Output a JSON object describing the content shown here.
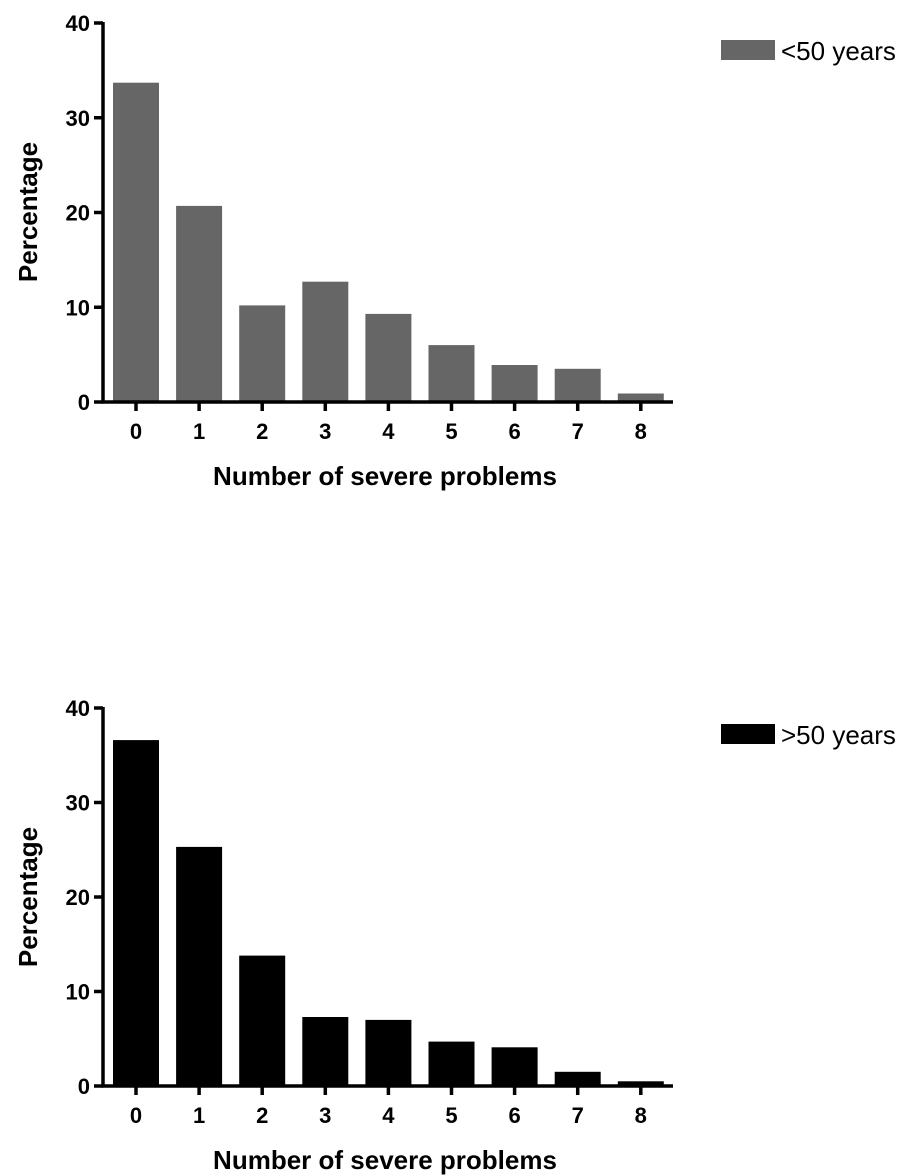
{
  "chart_data": [
    {
      "type": "bar",
      "categories": [
        "0",
        "1",
        "2",
        "3",
        "4",
        "5",
        "6",
        "7",
        "8"
      ],
      "series": [
        {
          "name": "<50 years",
          "values": [
            33.7,
            20.7,
            10.2,
            12.7,
            9.3,
            6.0,
            3.9,
            3.5,
            0.9
          ],
          "color": "#666666"
        }
      ],
      "xlabel": "Number of severe problems",
      "ylabel": "Percentage",
      "ylim": [
        0,
        40
      ],
      "yticks": [
        "0",
        "10",
        "20",
        "30",
        "40"
      ],
      "grid": false,
      "legend_position": "top-right"
    },
    {
      "type": "bar",
      "categories": [
        "0",
        "1",
        "2",
        "3",
        "4",
        "5",
        "6",
        "7",
        "8"
      ],
      "series": [
        {
          "name": ">50 years",
          "values": [
            36.6,
            25.3,
            13.8,
            7.3,
            7.0,
            4.7,
            4.1,
            1.5,
            0.5
          ],
          "color": "#000000"
        }
      ],
      "xlabel": "Number of severe problems",
      "ylabel": "Percentage",
      "ylim": [
        0,
        40
      ],
      "yticks": [
        "0",
        "10",
        "20",
        "30",
        "40"
      ],
      "grid": false,
      "legend_position": "top-right"
    }
  ]
}
